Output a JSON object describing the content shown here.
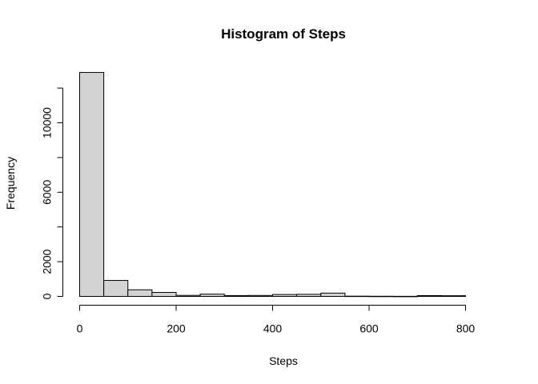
{
  "chart_data": {
    "type": "bar",
    "subtype": "histogram",
    "title": "Histogram of Steps",
    "xlabel": "Steps",
    "ylabel": "Frequency",
    "bin_width": 50,
    "bins": [
      {
        "x0": 0,
        "x1": 50,
        "value": 12900
      },
      {
        "x0": 50,
        "x1": 100,
        "value": 920
      },
      {
        "x0": 100,
        "x1": 150,
        "value": 380
      },
      {
        "x0": 150,
        "x1": 200,
        "value": 230
      },
      {
        "x0": 200,
        "x1": 250,
        "value": 60
      },
      {
        "x0": 250,
        "x1": 300,
        "value": 130
      },
      {
        "x0": 300,
        "x1": 350,
        "value": 50
      },
      {
        "x0": 350,
        "x1": 400,
        "value": 55
      },
      {
        "x0": 400,
        "x1": 450,
        "value": 110
      },
      {
        "x0": 450,
        "x1": 500,
        "value": 120
      },
      {
        "x0": 500,
        "x1": 550,
        "value": 190
      },
      {
        "x0": 550,
        "x1": 600,
        "value": 15
      },
      {
        "x0": 600,
        "x1": 650,
        "value": 10
      },
      {
        "x0": 650,
        "x1": 700,
        "value": 5
      },
      {
        "x0": 700,
        "x1": 750,
        "value": 45
      },
      {
        "x0": 750,
        "x1": 800,
        "value": 40
      }
    ],
    "xlim": [
      0,
      850
    ],
    "ylim": [
      0,
      13000
    ],
    "x_ticks": [
      0,
      200,
      400,
      600,
      800
    ],
    "y_ticks": [
      0,
      2000,
      6000,
      10000
    ],
    "bar_color": "#d3d3d3",
    "grid": false,
    "legend": "none"
  }
}
